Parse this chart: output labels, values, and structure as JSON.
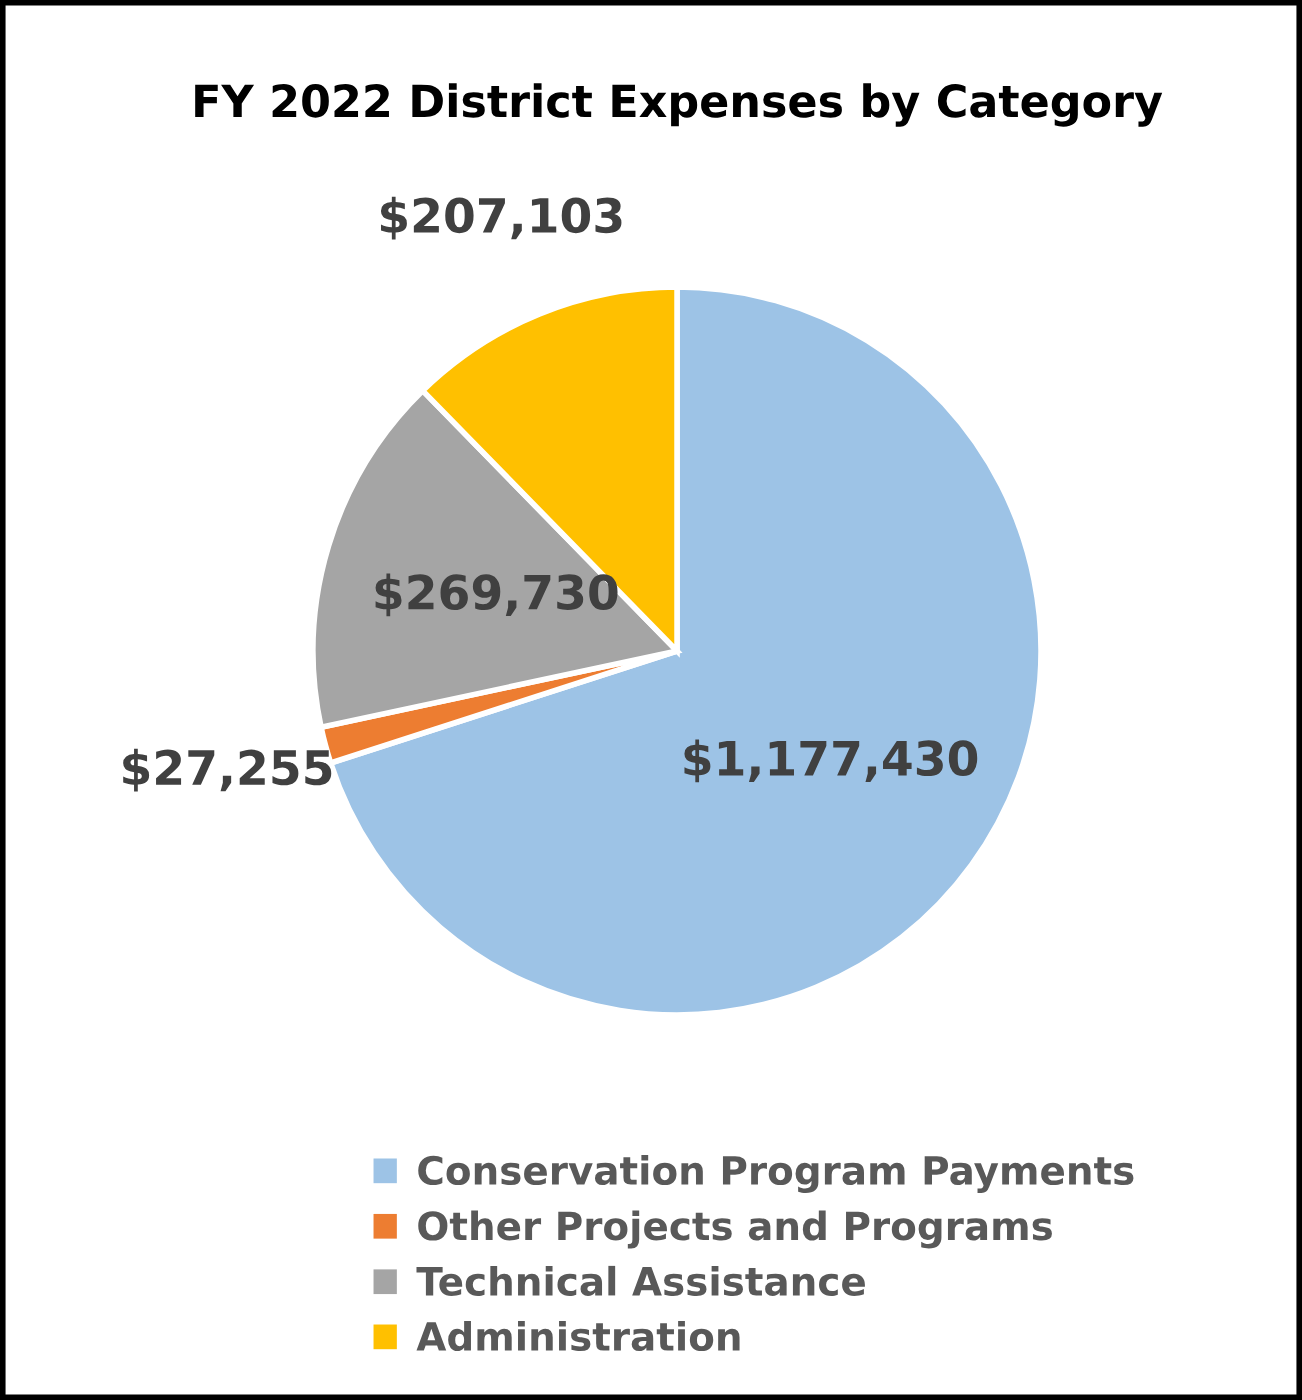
{
  "chart_data": {
    "type": "pie",
    "title": "FY 2022 District Expenses by Category",
    "categories": [
      "Conservation Program Payments",
      "Other Projects and Programs",
      "Technical Assistance",
      "Administration"
    ],
    "values": [
      1177430,
      27255,
      269730,
      207103
    ],
    "colors": [
      "#9dc3e6",
      "#ed7d31",
      "#a5a5a5",
      "#ffc000"
    ],
    "value_labels": [
      "$1,177,430",
      "$27,255",
      "$269,730",
      "$207,103"
    ],
    "legend": "bottom"
  }
}
